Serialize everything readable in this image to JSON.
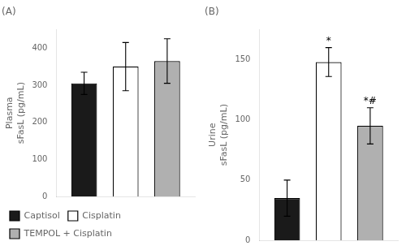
{
  "chart_data": [
    {
      "type": "bar",
      "title": "(A)",
      "ylabel": "Plasma\nsFasL (pg/mL)",
      "categories": [
        null
      ],
      "series": [
        {
          "name": "Captisol",
          "color": "#1a1a1a",
          "values": [
            305
          ],
          "errors": [
            30
          ]
        },
        {
          "name": "Cisplatin",
          "color": "#ffffff",
          "values": [
            350
          ],
          "errors": [
            65
          ]
        },
        {
          "name": "TEMPOL + Cisplatin",
          "color": "#b0b0b0",
          "values": [
            365
          ],
          "errors": [
            60
          ]
        }
      ],
      "ylim": [
        0,
        450
      ],
      "yticks": [
        0,
        100,
        200,
        300,
        400
      ],
      "grid": false,
      "tick_labels": "y",
      "legend": "bottom"
    },
    {
      "type": "bar",
      "title": "(B)",
      "ylabel": "Urine\nsFasL (pg/mL)",
      "categories": [
        null
      ],
      "series": [
        {
          "name": "Captisol",
          "color": "#1a1a1a",
          "values": [
            35
          ],
          "errors": [
            15
          ]
        },
        {
          "name": "Cisplatin",
          "color": "#ffffff",
          "values": [
            148
          ],
          "errors": [
            12
          ],
          "annotations": [
            "*"
          ]
        },
        {
          "name": "TEMPOL + Cisplatin",
          "color": "#b0b0b0",
          "values": [
            95
          ],
          "errors": [
            15
          ],
          "annotations": [
            "*#"
          ]
        }
      ],
      "ylim": [
        0,
        175
      ],
      "yticks": [
        0,
        50,
        100,
        150
      ],
      "grid": false,
      "tick_labels": "y"
    }
  ]
}
